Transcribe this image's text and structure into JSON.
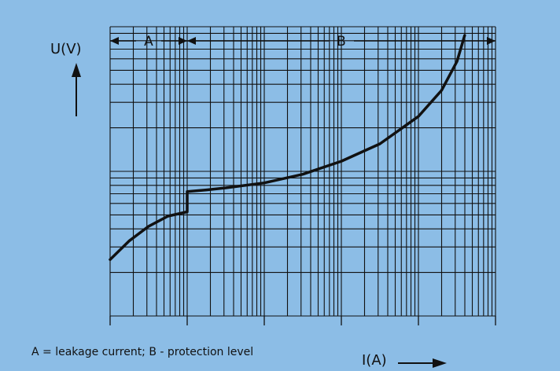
{
  "chart_data": {
    "type": "line",
    "ylabel": "U(V)",
    "xlabel": "I(A)",
    "caption": "A = leakage current; B - protection level",
    "regions": [
      {
        "label": "A",
        "x_start": 0,
        "x_end": 1
      },
      {
        "label": "B",
        "x_start": 1,
        "x_end": 5
      }
    ],
    "xlim": [
      0,
      5
    ],
    "ylim": [
      0,
      1
    ],
    "grid": true,
    "log_decades": {
      "x": 5,
      "y": 2
    },
    "series": [
      {
        "x": [
          0,
          0.25,
          0.5,
          0.75,
          1.0,
          1.0,
          1.0,
          1.25,
          1.5,
          2.0,
          2.5,
          3.0,
          3.5,
          4.0,
          4.3,
          4.5,
          4.6
        ],
        "y": [
          0.195,
          0.26,
          0.31,
          0.345,
          0.36,
          0.385,
          0.43,
          0.436,
          0.443,
          0.46,
          0.49,
          0.535,
          0.595,
          0.69,
          0.78,
          0.88,
          0.97
        ]
      }
    ],
    "colors": {
      "background": "#8cbde6",
      "line": "#111111",
      "grid": "#111111"
    }
  }
}
